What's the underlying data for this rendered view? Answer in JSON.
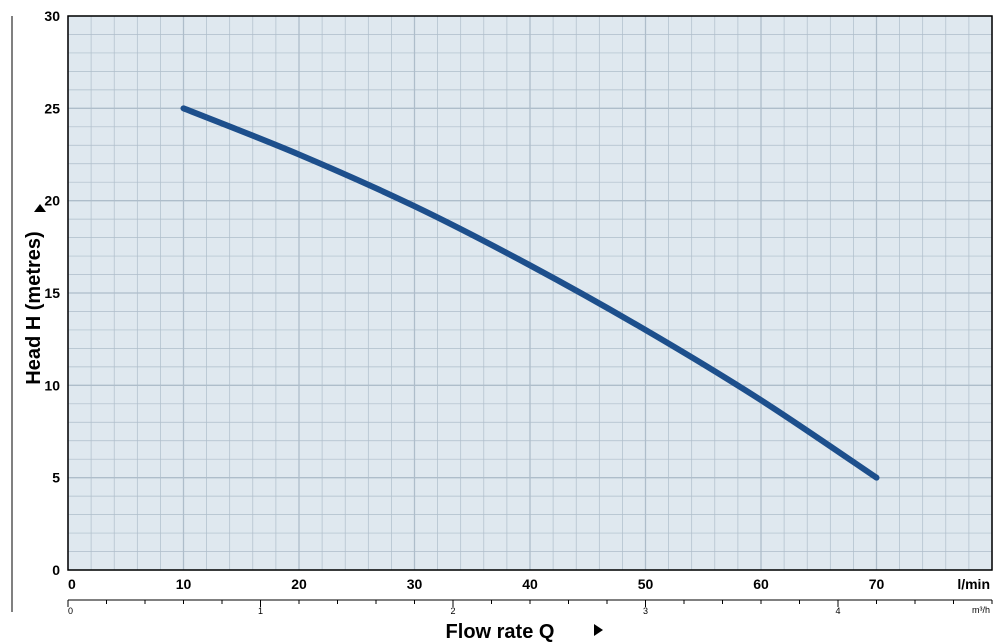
{
  "chart_data": {
    "type": "line",
    "title": "",
    "xlabel": "Flow rate  Q",
    "ylabel": "Head H (metres)",
    "x_unit": "l/min",
    "x2_unit": "m³/h",
    "xlim": [
      0,
      80
    ],
    "ylim": [
      0,
      30
    ],
    "x_ticks": [
      "0",
      "10",
      "20",
      "30",
      "40",
      "50",
      "60",
      "70"
    ],
    "x2_ticks": [
      "0",
      "1",
      "2",
      "3",
      "4"
    ],
    "y_ticks": [
      "0",
      "5",
      "10",
      "15",
      "20",
      "25",
      "30"
    ],
    "grid": true,
    "series": [
      {
        "x": [
          10,
          20,
          30,
          40,
          50,
          60,
          70
        ],
        "y": [
          25,
          22.5,
          19.7,
          16.5,
          13,
          9.2,
          5
        ]
      }
    ],
    "colors": {
      "plot_bg": "#dfe8ef",
      "grid": "#aebdca",
      "line": "#1d4f8c",
      "axis": "#000000"
    }
  }
}
